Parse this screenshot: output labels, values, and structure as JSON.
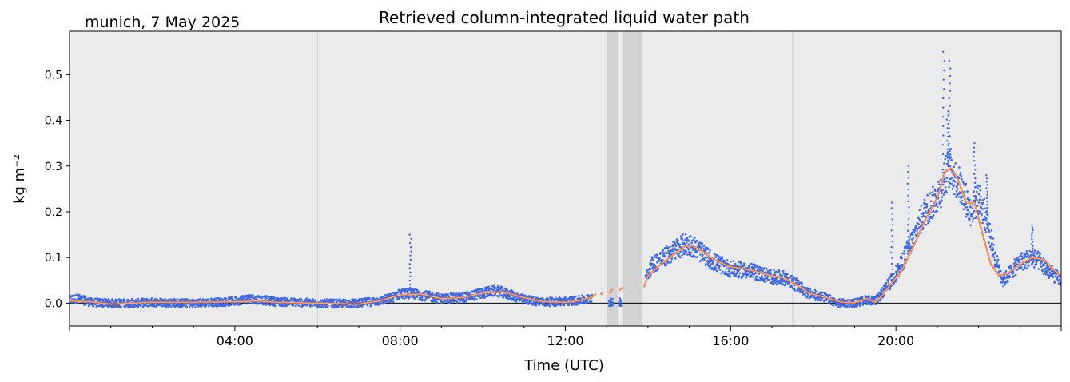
{
  "chart_data": {
    "type": "line",
    "title": "Retrieved column-integrated liquid water path",
    "subtitle": "munich, 7 May 2025",
    "xlabel": "Time (UTC)",
    "ylabel": "kg m⁻²",
    "xlim": [
      0,
      24
    ],
    "ylim": [
      -0.05,
      0.595
    ],
    "x_ticks": [
      {
        "value": 4,
        "label": "04:00"
      },
      {
        "value": 8,
        "label": "08:00"
      },
      {
        "value": 12,
        "label": "12:00"
      },
      {
        "value": 16,
        "label": "16:00"
      },
      {
        "value": 20,
        "label": "20:00"
      }
    ],
    "y_ticks": [
      {
        "value": 0.0,
        "label": "0.0"
      },
      {
        "value": 0.1,
        "label": "0.1"
      },
      {
        "value": 0.2,
        "label": "0.2"
      },
      {
        "value": 0.3,
        "label": "0.3"
      },
      {
        "value": 0.4,
        "label": "0.4"
      },
      {
        "value": 0.5,
        "label": "0.5"
      }
    ],
    "background_color": "#ebebeb",
    "grid_x_values": [
      6,
      17.5
    ],
    "zero_line": 0,
    "shaded_spans": [
      {
        "start": 13.0,
        "end": 13.27
      },
      {
        "start": 13.4,
        "end": 13.85
      }
    ],
    "series": [
      {
        "style": "scatter-dense",
        "color": "#4169e1",
        "noise": 0.009,
        "x": [
          0,
          0.2,
          0.5,
          1,
          1.5,
          2,
          2.5,
          3,
          3.5,
          4,
          4.3,
          4.6,
          5,
          5.5,
          6,
          6.5,
          7,
          7.5,
          7.8,
          8,
          8.25,
          8.5,
          9,
          9.5,
          10,
          10.3,
          10.6,
          11,
          11.5,
          12,
          12.3,
          12.6,
          12.65,
          13.05,
          13.15,
          13.3,
          13.35,
          13.95,
          14.1,
          14.4,
          14.7,
          14.9,
          15.1,
          15.3,
          15.6,
          16,
          16.5,
          17,
          17.3,
          17.6,
          17.9,
          18.2,
          18.6,
          19,
          19.3,
          19.5,
          19.7,
          19.9,
          20.1,
          20.3,
          20.5,
          20.7,
          20.9,
          21.1,
          21.2,
          21.3,
          21.45,
          21.6,
          21.8,
          22,
          22.2,
          22.4,
          22.6,
          22.8,
          23,
          23.3,
          23.5,
          23.7,
          24
        ],
        "y": [
          0.008,
          0.01,
          0.002,
          0.0,
          0.0,
          0.002,
          0.001,
          0.0,
          0.002,
          0.004,
          0.01,
          0.008,
          0.003,
          0.002,
          0.0,
          -0.001,
          0.0,
          0.005,
          0.012,
          0.02,
          0.022,
          0.018,
          0.01,
          0.012,
          0.022,
          0.028,
          0.02,
          0.008,
          0.002,
          0.004,
          0.006,
          0.01,
          0.015,
          0.003,
          0.0,
          0.004,
          0.003,
          0.06,
          0.085,
          0.1,
          0.12,
          0.13,
          0.125,
          0.11,
          0.09,
          0.075,
          0.07,
          0.058,
          0.055,
          0.04,
          0.02,
          0.015,
          0.0,
          0.0,
          0.008,
          0.004,
          0.025,
          0.05,
          0.08,
          0.12,
          0.16,
          0.2,
          0.22,
          0.25,
          0.28,
          0.3,
          0.27,
          0.25,
          0.2,
          0.23,
          0.18,
          0.1,
          0.05,
          0.07,
          0.09,
          0.1,
          0.09,
          0.07,
          0.05
        ],
        "spikes": [
          {
            "x": 8.25,
            "y": 0.15
          },
          {
            "x": 19.9,
            "y": 0.22
          },
          {
            "x": 20.3,
            "y": 0.3
          },
          {
            "x": 21.15,
            "y": 0.55
          },
          {
            "x": 21.3,
            "y": 0.53
          },
          {
            "x": 21.25,
            "y": 0.42
          },
          {
            "x": 21.9,
            "y": 0.35
          },
          {
            "x": 22.2,
            "y": 0.28
          },
          {
            "x": 23.3,
            "y": 0.17
          }
        ]
      },
      {
        "style": "smoothed-line",
        "color": "#e8743b",
        "segments": [
          {
            "x": [
              0,
              0.5,
              1,
              1.5,
              2,
              3,
              4,
              4.5,
              5,
              6,
              7,
              7.5,
              8,
              8.5,
              9,
              9.5,
              10,
              10.5,
              11,
              11.5,
              12,
              12.3,
              12.6,
              12.75
            ],
            "y": [
              0.005,
              0.003,
              -0.002,
              0.0,
              0.002,
              0.002,
              0.003,
              0.005,
              0.002,
              0.0,
              -0.002,
              0.005,
              0.018,
              0.02,
              0.01,
              0.012,
              0.022,
              0.025,
              0.012,
              0.003,
              0.002,
              0.005,
              0.012,
              0.02
            ]
          },
          {
            "x": [
              12.85,
              12.9
            ],
            "y": [
              0.018,
              0.024
            ]
          },
          {
            "x": [
              13.05,
              13.15
            ],
            "y": [
              0.022,
              0.03
            ]
          },
          {
            "x": [
              13.3,
              13.4
            ],
            "y": [
              0.028,
              0.035
            ]
          },
          {
            "x": [
              13.9,
              14.0,
              14.3,
              14.6,
              14.9,
              15.1,
              15.3,
              15.6,
              16,
              16.5,
              17,
              17.3,
              17.6,
              17.9,
              18.3,
              18.7,
              19,
              19.3,
              19.5,
              19.7,
              19.9,
              20.1,
              20.4,
              20.7,
              21.0,
              21.2,
              21.35,
              21.5,
              21.7,
              21.9,
              22.1,
              22.3,
              22.5,
              22.7,
              23,
              23.3,
              23.6,
              23.8,
              24
            ],
            "y": [
              0.035,
              0.06,
              0.085,
              0.105,
              0.125,
              0.125,
              0.115,
              0.095,
              0.08,
              0.072,
              0.06,
              0.055,
              0.04,
              0.022,
              0.012,
              0.002,
              0.001,
              0.01,
              0.002,
              0.02,
              0.045,
              0.065,
              0.12,
              0.18,
              0.23,
              0.29,
              0.295,
              0.27,
              0.22,
              0.22,
              0.15,
              0.085,
              0.06,
              0.065,
              0.085,
              0.1,
              0.095,
              0.075,
              0.06
            ]
          }
        ]
      }
    ]
  }
}
